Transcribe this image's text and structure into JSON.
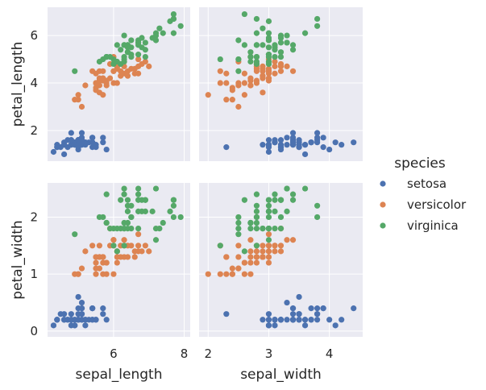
{
  "chart_data": {
    "type": "scatter",
    "kind": "pair-grid",
    "x_vars": [
      "sepal_length",
      "sepal_width"
    ],
    "y_vars": [
      "petal_length",
      "petal_width"
    ],
    "x_ticks": {
      "sepal_length": [
        6,
        8
      ],
      "sepal_width": [
        2,
        3,
        4
      ]
    },
    "y_ticks": {
      "petal_length": [
        2,
        4,
        6
      ],
      "petal_width": [
        0,
        1,
        2
      ]
    },
    "limits": {
      "sepal_length": [
        4.13,
        8.17
      ],
      "sepal_width": [
        1.85,
        4.55
      ],
      "petal_length": [
        0.71,
        7.19
      ],
      "petal_width": [
        -0.1,
        2.6
      ]
    },
    "grid": true,
    "legend": {
      "title": "species",
      "placement": "right"
    },
    "series": [
      {
        "name": "setosa",
        "color": "#4c72b0",
        "points": [
          [
            5.1,
            3.5,
            1.4,
            0.2
          ],
          [
            4.9,
            3.0,
            1.4,
            0.2
          ],
          [
            4.7,
            3.2,
            1.3,
            0.2
          ],
          [
            4.6,
            3.1,
            1.5,
            0.2
          ],
          [
            5.0,
            3.6,
            1.4,
            0.2
          ],
          [
            5.4,
            3.9,
            1.7,
            0.4
          ],
          [
            4.6,
            3.4,
            1.4,
            0.3
          ],
          [
            5.0,
            3.4,
            1.5,
            0.2
          ],
          [
            4.4,
            2.9,
            1.4,
            0.2
          ],
          [
            4.9,
            3.1,
            1.5,
            0.1
          ],
          [
            5.4,
            3.7,
            1.5,
            0.2
          ],
          [
            4.8,
            3.4,
            1.6,
            0.2
          ],
          [
            4.8,
            3.0,
            1.4,
            0.1
          ],
          [
            4.3,
            3.0,
            1.1,
            0.1
          ],
          [
            5.8,
            4.0,
            1.2,
            0.2
          ],
          [
            5.7,
            4.4,
            1.5,
            0.4
          ],
          [
            5.4,
            3.9,
            1.3,
            0.4
          ],
          [
            5.1,
            3.5,
            1.4,
            0.3
          ],
          [
            5.7,
            3.8,
            1.7,
            0.3
          ],
          [
            5.1,
            3.8,
            1.5,
            0.3
          ],
          [
            5.4,
            3.4,
            1.7,
            0.2
          ],
          [
            5.1,
            3.7,
            1.5,
            0.4
          ],
          [
            4.6,
            3.6,
            1.0,
            0.2
          ],
          [
            5.1,
            3.3,
            1.7,
            0.5
          ],
          [
            4.8,
            3.4,
            1.9,
            0.2
          ],
          [
            5.0,
            3.0,
            1.6,
            0.2
          ],
          [
            5.0,
            3.4,
            1.6,
            0.4
          ],
          [
            5.2,
            3.5,
            1.5,
            0.2
          ],
          [
            5.2,
            3.4,
            1.4,
            0.2
          ],
          [
            4.7,
            3.2,
            1.6,
            0.2
          ],
          [
            4.8,
            3.1,
            1.6,
            0.2
          ],
          [
            5.4,
            3.4,
            1.5,
            0.4
          ],
          [
            5.2,
            4.1,
            1.5,
            0.1
          ],
          [
            5.5,
            4.2,
            1.4,
            0.2
          ],
          [
            4.9,
            3.1,
            1.5,
            0.2
          ],
          [
            5.0,
            3.2,
            1.2,
            0.2
          ],
          [
            5.5,
            3.5,
            1.3,
            0.2
          ],
          [
            4.9,
            3.6,
            1.4,
            0.1
          ],
          [
            4.4,
            3.0,
            1.3,
            0.2
          ],
          [
            5.1,
            3.4,
            1.5,
            0.2
          ],
          [
            5.0,
            3.5,
            1.3,
            0.3
          ],
          [
            4.5,
            2.3,
            1.3,
            0.3
          ],
          [
            4.4,
            3.2,
            1.3,
            0.2
          ],
          [
            5.0,
            3.5,
            1.6,
            0.6
          ],
          [
            5.1,
            3.8,
            1.9,
            0.4
          ],
          [
            4.8,
            3.0,
            1.4,
            0.3
          ],
          [
            5.1,
            3.8,
            1.6,
            0.2
          ],
          [
            4.6,
            3.2,
            1.4,
            0.2
          ],
          [
            5.3,
            3.7,
            1.5,
            0.2
          ],
          [
            5.0,
            3.3,
            1.4,
            0.2
          ]
        ]
      },
      {
        "name": "versicolor",
        "color": "#dd8452",
        "points": [
          [
            7.0,
            3.2,
            4.7,
            1.4
          ],
          [
            6.4,
            3.2,
            4.5,
            1.5
          ],
          [
            6.9,
            3.1,
            4.9,
            1.5
          ],
          [
            5.5,
            2.3,
            4.0,
            1.3
          ],
          [
            6.5,
            2.8,
            4.6,
            1.5
          ],
          [
            5.7,
            2.8,
            4.5,
            1.3
          ],
          [
            6.3,
            3.3,
            4.7,
            1.6
          ],
          [
            4.9,
            2.4,
            3.3,
            1.0
          ],
          [
            6.6,
            2.9,
            4.6,
            1.3
          ],
          [
            5.2,
            2.7,
            3.9,
            1.4
          ],
          [
            5.0,
            2.0,
            3.5,
            1.0
          ],
          [
            5.9,
            3.0,
            4.2,
            1.5
          ],
          [
            6.0,
            2.2,
            4.0,
            1.0
          ],
          [
            6.1,
            2.9,
            4.7,
            1.4
          ],
          [
            5.6,
            2.9,
            3.6,
            1.3
          ],
          [
            6.7,
            3.1,
            4.4,
            1.4
          ],
          [
            5.6,
            3.0,
            4.5,
            1.5
          ],
          [
            5.8,
            2.7,
            4.1,
            1.0
          ],
          [
            6.2,
            2.2,
            4.5,
            1.5
          ],
          [
            5.6,
            2.5,
            3.9,
            1.1
          ],
          [
            5.9,
            3.2,
            4.8,
            1.8
          ],
          [
            6.1,
            2.8,
            4.0,
            1.3
          ],
          [
            6.3,
            2.5,
            4.9,
            1.5
          ],
          [
            6.1,
            2.8,
            4.7,
            1.2
          ],
          [
            6.4,
            2.9,
            4.3,
            1.3
          ],
          [
            6.6,
            3.0,
            4.4,
            1.4
          ],
          [
            6.8,
            2.8,
            4.8,
            1.4
          ],
          [
            6.7,
            3.0,
            5.0,
            1.7
          ],
          [
            6.0,
            2.9,
            4.5,
            1.5
          ],
          [
            5.7,
            2.6,
            3.5,
            1.0
          ],
          [
            5.5,
            2.4,
            3.8,
            1.1
          ],
          [
            5.5,
            2.4,
            3.7,
            1.0
          ],
          [
            5.8,
            2.7,
            3.9,
            1.2
          ],
          [
            6.0,
            2.7,
            5.1,
            1.6
          ],
          [
            5.4,
            3.0,
            4.5,
            1.5
          ],
          [
            6.0,
            3.4,
            4.5,
            1.6
          ],
          [
            6.7,
            3.1,
            4.7,
            1.5
          ],
          [
            6.3,
            2.3,
            4.4,
            1.3
          ],
          [
            5.6,
            3.0,
            4.1,
            1.3
          ],
          [
            5.5,
            2.5,
            4.0,
            1.3
          ],
          [
            5.5,
            2.6,
            4.4,
            1.2
          ],
          [
            6.1,
            3.0,
            4.6,
            1.4
          ],
          [
            5.8,
            2.6,
            4.0,
            1.2
          ],
          [
            5.0,
            2.3,
            3.3,
            1.0
          ],
          [
            5.6,
            2.7,
            4.2,
            1.3
          ],
          [
            5.7,
            3.0,
            4.2,
            1.2
          ],
          [
            5.7,
            2.9,
            4.2,
            1.3
          ],
          [
            6.2,
            2.9,
            4.3,
            1.3
          ],
          [
            5.1,
            2.5,
            3.0,
            1.1
          ],
          [
            5.7,
            2.8,
            4.1,
            1.3
          ]
        ]
      },
      {
        "name": "virginica",
        "color": "#55a868",
        "points": [
          [
            6.3,
            3.3,
            6.0,
            2.5
          ],
          [
            5.8,
            2.7,
            5.1,
            1.9
          ],
          [
            7.1,
            3.0,
            5.9,
            2.1
          ],
          [
            6.3,
            2.9,
            5.6,
            1.8
          ],
          [
            6.5,
            3.0,
            5.8,
            2.2
          ],
          [
            7.6,
            3.0,
            6.6,
            2.1
          ],
          [
            4.9,
            2.5,
            4.5,
            1.7
          ],
          [
            7.3,
            2.9,
            6.3,
            1.8
          ],
          [
            6.7,
            2.5,
            5.8,
            1.8
          ],
          [
            7.2,
            3.6,
            6.1,
            2.5
          ],
          [
            6.5,
            3.2,
            5.1,
            2.0
          ],
          [
            6.4,
            2.7,
            5.3,
            1.9
          ],
          [
            6.8,
            3.0,
            5.5,
            2.1
          ],
          [
            5.7,
            2.5,
            5.0,
            2.0
          ],
          [
            5.8,
            2.8,
            5.1,
            2.4
          ],
          [
            6.4,
            3.2,
            5.3,
            2.3
          ],
          [
            6.5,
            3.0,
            5.5,
            1.8
          ],
          [
            7.7,
            3.8,
            6.7,
            2.2
          ],
          [
            7.7,
            2.6,
            6.9,
            2.3
          ],
          [
            6.0,
            2.2,
            5.0,
            1.5
          ],
          [
            6.9,
            3.2,
            5.7,
            2.3
          ],
          [
            5.6,
            2.8,
            4.9,
            2.0
          ],
          [
            7.7,
            2.8,
            6.7,
            2.0
          ],
          [
            6.3,
            2.7,
            4.9,
            1.8
          ],
          [
            6.7,
            3.3,
            5.7,
            2.1
          ],
          [
            7.2,
            3.2,
            6.0,
            1.8
          ],
          [
            6.2,
            2.8,
            4.8,
            1.8
          ],
          [
            6.1,
            3.0,
            4.9,
            1.8
          ],
          [
            6.4,
            2.8,
            5.6,
            2.1
          ],
          [
            7.2,
            3.0,
            5.8,
            1.6
          ],
          [
            7.4,
            2.8,
            6.1,
            1.9
          ],
          [
            7.9,
            3.8,
            6.4,
            2.0
          ],
          [
            6.4,
            2.8,
            5.6,
            2.2
          ],
          [
            6.3,
            2.8,
            5.1,
            1.5
          ],
          [
            6.1,
            2.6,
            5.6,
            1.4
          ],
          [
            7.7,
            3.0,
            6.1,
            2.3
          ],
          [
            6.3,
            3.4,
            5.6,
            2.4
          ],
          [
            6.4,
            3.1,
            5.5,
            1.8
          ],
          [
            6.0,
            3.0,
            4.8,
            1.8
          ],
          [
            6.9,
            3.1,
            5.4,
            2.1
          ],
          [
            6.7,
            3.1,
            5.6,
            2.4
          ],
          [
            6.9,
            3.1,
            5.1,
            2.3
          ],
          [
            5.8,
            2.7,
            5.1,
            1.9
          ],
          [
            6.8,
            3.2,
            5.9,
            2.3
          ],
          [
            6.7,
            3.3,
            5.7,
            2.5
          ],
          [
            6.7,
            3.0,
            5.2,
            2.3
          ],
          [
            6.3,
            2.5,
            5.0,
            1.9
          ],
          [
            6.5,
            3.0,
            5.2,
            2.0
          ],
          [
            6.2,
            3.4,
            5.4,
            2.3
          ],
          [
            5.9,
            3.0,
            5.1,
            1.8
          ]
        ]
      }
    ]
  }
}
